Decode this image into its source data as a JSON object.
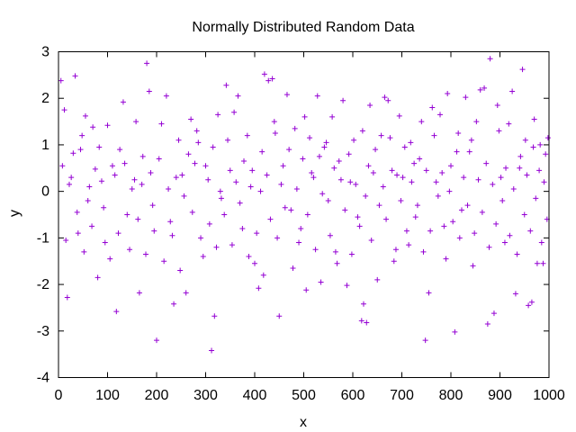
{
  "chart_data": {
    "type": "scatter",
    "title": "Normally Distributed Random Data",
    "xlabel": "x",
    "ylabel": "y",
    "xlim": [
      0,
      1000
    ],
    "ylim": [
      -4,
      3
    ],
    "xticks": [
      "0",
      "100",
      "200",
      "300",
      "400",
      "500",
      "600",
      "700",
      "800",
      "900",
      "1000"
    ],
    "yticks": [
      "-4",
      "-3",
      "-2",
      "-1",
      "0",
      "1",
      "2",
      "3"
    ],
    "grid": false,
    "legend": "none",
    "marker": "plus",
    "color": "#9400d3",
    "series": [
      {
        "points": [
          [
            5,
            2.38
          ],
          [
            12,
            1.75
          ],
          [
            18,
            -2.28
          ],
          [
            22,
            0.15
          ],
          [
            30,
            0.82
          ],
          [
            34,
            2.48
          ],
          [
            40,
            -0.9
          ],
          [
            48,
            1.2
          ],
          [
            55,
            1.62
          ],
          [
            60,
            -0.2
          ],
          [
            70,
            1.38
          ],
          [
            75,
            0.48
          ],
          [
            80,
            -1.85
          ],
          [
            88,
            0.22
          ],
          [
            95,
            -1.1
          ],
          [
            100,
            1.42
          ],
          [
            110,
            0.55
          ],
          [
            118,
            -2.58
          ],
          [
            125,
            0.9
          ],
          [
            132,
            1.92
          ],
          [
            140,
            -0.5
          ],
          [
            150,
            0.05
          ],
          [
            158,
            1.5
          ],
          [
            165,
            -2.18
          ],
          [
            172,
            0.75
          ],
          [
            180,
            2.75
          ],
          [
            185,
            2.15
          ],
          [
            192,
            -0.3
          ],
          [
            200,
            -3.2
          ],
          [
            210,
            1.45
          ],
          [
            220,
            2.05
          ],
          [
            228,
            -0.65
          ],
          [
            235,
            -2.42
          ],
          [
            245,
            1.1
          ],
          [
            252,
            0.35
          ],
          [
            260,
            -2.18
          ],
          [
            270,
            1.55
          ],
          [
            278,
            0.6
          ],
          [
            285,
            1.05
          ],
          [
            295,
            -1.4
          ],
          [
            305,
            0.25
          ],
          [
            312,
            -3.42
          ],
          [
            318,
            -2.68
          ],
          [
            325,
            1.65
          ],
          [
            332,
            -0.15
          ],
          [
            342,
            2.28
          ],
          [
            350,
            0.45
          ],
          [
            358,
            1.7
          ],
          [
            366,
            2.05
          ],
          [
            375,
            -0.8
          ],
          [
            385,
            1.2
          ],
          [
            392,
            0.1
          ],
          [
            400,
            -1.55
          ],
          [
            408,
            -2.08
          ],
          [
            415,
            0.85
          ],
          [
            420,
            2.52
          ],
          [
            428,
            2.38
          ],
          [
            436,
            2.42
          ],
          [
            442,
            1.25
          ],
          [
            450,
            -2.68
          ],
          [
            458,
            0.55
          ],
          [
            466,
            2.08
          ],
          [
            474,
            -0.4
          ],
          [
            482,
            1.35
          ],
          [
            490,
            -1.1
          ],
          [
            498,
            0.7
          ],
          [
            505,
            -2.12
          ],
          [
            512,
            1.15
          ],
          [
            520,
            0.3
          ],
          [
            528,
            2.05
          ],
          [
            535,
            -1.95
          ],
          [
            542,
            0.95
          ],
          [
            550,
            -0.2
          ],
          [
            558,
            1.6
          ],
          [
            565,
            -1.3
          ],
          [
            572,
            0.65
          ],
          [
            580,
            1.95
          ],
          [
            588,
            -2.02
          ],
          [
            595,
            0.2
          ],
          [
            602,
            1.1
          ],
          [
            610,
            -0.55
          ],
          [
            618,
            -2.78
          ],
          [
            622,
            -2.42
          ],
          [
            628,
            -2.82
          ],
          [
            635,
            1.85
          ],
          [
            642,
            0.4
          ],
          [
            650,
            -1.9
          ],
          [
            658,
            1.2
          ],
          [
            665,
            2.02
          ],
          [
            672,
            1.95
          ],
          [
            680,
            0.45
          ],
          [
            688,
            -1.25
          ],
          [
            695,
            1.62
          ],
          [
            702,
            0.3
          ],
          [
            710,
            -0.85
          ],
          [
            718,
            1.05
          ],
          [
            725,
            0.6
          ],
          [
            732,
            -0.3
          ],
          [
            740,
            1.5
          ],
          [
            748,
            -3.2
          ],
          [
            755,
            -2.18
          ],
          [
            762,
            1.8
          ],
          [
            770,
            0.2
          ],
          [
            778,
            1.65
          ],
          [
            786,
            -0.75
          ],
          [
            793,
            2.1
          ],
          [
            800,
            0.55
          ],
          [
            808,
            -3.02
          ],
          [
            815,
            1.25
          ],
          [
            822,
            -0.4
          ],
          [
            830,
            2.02
          ],
          [
            838,
            0.85
          ],
          [
            845,
            -1.6
          ],
          [
            852,
            1.5
          ],
          [
            860,
            2.18
          ],
          [
            868,
            2.22
          ],
          [
            875,
            -2.85
          ],
          [
            880,
            2.85
          ],
          [
            888,
            -2.62
          ],
          [
            895,
            1.85
          ],
          [
            902,
            0.3
          ],
          [
            910,
            -1.1
          ],
          [
            918,
            1.45
          ],
          [
            925,
            2.15
          ],
          [
            932,
            -2.2
          ],
          [
            940,
            0.5
          ],
          [
            946,
            2.62
          ],
          [
            952,
            1.1
          ],
          [
            958,
            -2.45
          ],
          [
            965,
            -2.38
          ],
          [
            970,
            1.55
          ],
          [
            976,
            -1.55
          ],
          [
            982,
            1.0
          ],
          [
            988,
            -1.55
          ],
          [
            993,
            0.8
          ],
          [
            998,
            1.15
          ],
          [
            8,
            0.55
          ],
          [
            15,
            -1.05
          ],
          [
            26,
            0.3
          ],
          [
            38,
            -0.45
          ],
          [
            45,
            0.9
          ],
          [
            52,
            -1.3
          ],
          [
            63,
            0.1
          ],
          [
            68,
            -0.75
          ],
          [
            83,
            0.95
          ],
          [
            92,
            -0.35
          ],
          [
            105,
            -1.45
          ],
          [
            115,
            0.35
          ],
          [
            122,
            -0.9
          ],
          [
            135,
            0.6
          ],
          [
            145,
            -1.25
          ],
          [
            155,
            0.25
          ],
          [
            162,
            -0.6
          ],
          [
            170,
            0.15
          ],
          [
            178,
            -1.35
          ],
          [
            188,
            0.4
          ],
          [
            195,
            -0.85
          ],
          [
            205,
            0.7
          ],
          [
            215,
            -1.5
          ],
          [
            224,
            0.05
          ],
          [
            232,
            -0.95
          ],
          [
            240,
            0.3
          ],
          [
            248,
            -1.7
          ],
          [
            256,
            -0.1
          ],
          [
            265,
            0.8
          ],
          [
            273,
            -0.45
          ],
          [
            282,
            1.3
          ],
          [
            290,
            -1.0
          ],
          [
            300,
            0.55
          ],
          [
            308,
            -0.7
          ],
          [
            315,
            0.95
          ],
          [
            322,
            -1.2
          ],
          [
            330,
            0.0
          ],
          [
            338,
            -0.5
          ],
          [
            345,
            1.1
          ],
          [
            354,
            -1.15
          ],
          [
            362,
            0.2
          ],
          [
            370,
            -0.25
          ],
          [
            378,
            0.65
          ],
          [
            388,
            -1.4
          ],
          [
            395,
            0.45
          ],
          [
            404,
            -0.9
          ],
          [
            412,
            0.0
          ],
          [
            418,
            -1.8
          ],
          [
            425,
            0.35
          ],
          [
            432,
            -0.6
          ],
          [
            440,
            1.5
          ],
          [
            446,
            -1.0
          ],
          [
            454,
            0.15
          ],
          [
            462,
            -0.35
          ],
          [
            470,
            0.9
          ],
          [
            478,
            -1.65
          ],
          [
            486,
            0.05
          ],
          [
            494,
            -0.8
          ],
          [
            502,
            1.6
          ],
          [
            508,
            -0.5
          ],
          [
            516,
            0.4
          ],
          [
            524,
            -1.25
          ],
          [
            532,
            0.75
          ],
          [
            538,
            -0.05
          ],
          [
            546,
            1.05
          ],
          [
            554,
            -0.95
          ],
          [
            562,
            0.5
          ],
          [
            568,
            -1.55
          ],
          [
            576,
            0.25
          ],
          [
            584,
            -0.4
          ],
          [
            592,
            0.8
          ],
          [
            598,
            -1.35
          ],
          [
            606,
            0.15
          ],
          [
            614,
            -0.75
          ],
          [
            620,
            1.3
          ],
          [
            626,
            -0.1
          ],
          [
            632,
            0.55
          ],
          [
            638,
            -1.05
          ],
          [
            646,
            0.9
          ],
          [
            654,
            -0.3
          ],
          [
            662,
            0.1
          ],
          [
            668,
            -0.6
          ],
          [
            676,
            1.15
          ],
          [
            684,
            -1.5
          ],
          [
            690,
            0.35
          ],
          [
            698,
            -0.2
          ],
          [
            706,
            0.95
          ],
          [
            714,
            -1.15
          ],
          [
            720,
            0.2
          ],
          [
            728,
            -0.55
          ],
          [
            736,
            0.7
          ],
          [
            744,
            -1.3
          ],
          [
            750,
            0.45
          ],
          [
            758,
            -0.85
          ],
          [
            766,
            1.2
          ],
          [
            774,
            -0.1
          ],
          [
            782,
            0.4
          ],
          [
            790,
            -1.45
          ],
          [
            797,
            0.0
          ],
          [
            804,
            -0.65
          ],
          [
            812,
            0.85
          ],
          [
            818,
            -1.0
          ],
          [
            826,
            0.3
          ],
          [
            834,
            -0.3
          ],
          [
            842,
            1.1
          ],
          [
            848,
            -0.9
          ],
          [
            856,
            0.25
          ],
          [
            864,
            -0.45
          ],
          [
            872,
            0.6
          ],
          [
            878,
            -1.2
          ],
          [
            885,
            0.15
          ],
          [
            892,
            -0.7
          ],
          [
            898,
            1.3
          ],
          [
            905,
            -0.2
          ],
          [
            912,
            0.5
          ],
          [
            920,
            -0.95
          ],
          [
            928,
            0.05
          ],
          [
            935,
            -1.35
          ],
          [
            942,
            0.75
          ],
          [
            950,
            -0.5
          ],
          [
            955,
            0.35
          ],
          [
            962,
            -0.85
          ],
          [
            968,
            0.95
          ],
          [
            973,
            -0.15
          ],
          [
            980,
            0.45
          ],
          [
            985,
            -1.1
          ],
          [
            990,
            0.2
          ],
          [
            996,
            -0.6
          ]
        ]
      }
    ]
  }
}
